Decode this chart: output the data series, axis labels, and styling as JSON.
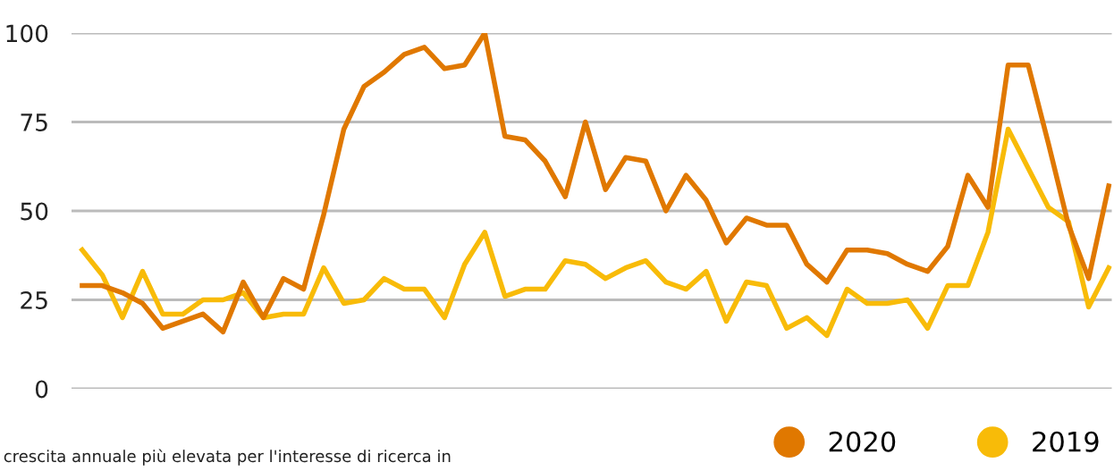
{
  "chart_data": {
    "type": "line",
    "categories": [
      null,
      null,
      null,
      null,
      null,
      null,
      null,
      null,
      null,
      null,
      null,
      null,
      null,
      null,
      null,
      null,
      null,
      null,
      null,
      null,
      null,
      null,
      null,
      null,
      null,
      null,
      null,
      null,
      null,
      null,
      null,
      null,
      null,
      null,
      null,
      null,
      null,
      null,
      null,
      null,
      null,
      null,
      null,
      null,
      null,
      null,
      null,
      null,
      null,
      null,
      null,
      null
    ],
    "series": [
      {
        "name": "2020",
        "color": "#e07800",
        "values": [
          29,
          29,
          27,
          24,
          17,
          19,
          21,
          16,
          30,
          20,
          31,
          28,
          49,
          73,
          85,
          89,
          94,
          96,
          90,
          91,
          100,
          71,
          70,
          64,
          54,
          75,
          56,
          65,
          64,
          50,
          60,
          53,
          41,
          48,
          46,
          46,
          35,
          30,
          39,
          39,
          38,
          35,
          33,
          40,
          60,
          51,
          91,
          91,
          69,
          46,
          31,
          57
        ]
      },
      {
        "name": "2019",
        "color": "#f8bb08",
        "values": [
          39,
          32,
          20,
          33,
          21,
          21,
          25,
          25,
          27,
          20,
          21,
          21,
          34,
          24,
          25,
          31,
          28,
          28,
          20,
          35,
          44,
          26,
          28,
          28,
          36,
          35,
          31,
          34,
          36,
          30,
          28,
          33,
          19,
          30,
          29,
          17,
          20,
          15,
          28,
          24,
          24,
          25,
          17,
          29,
          29,
          44,
          73,
          62,
          51,
          47,
          23,
          34
        ]
      }
    ],
    "ylim": [
      0,
      100
    ],
    "yticks": [
      0,
      25,
      50,
      75,
      100
    ],
    "grid": "y",
    "legend": "bottom right",
    "marker": "none",
    "line_style": "solid",
    "tick_labels": "y",
    "annotations": [
      "crescita annuale più elevata per l'interesse di ricerca in"
    ]
  }
}
